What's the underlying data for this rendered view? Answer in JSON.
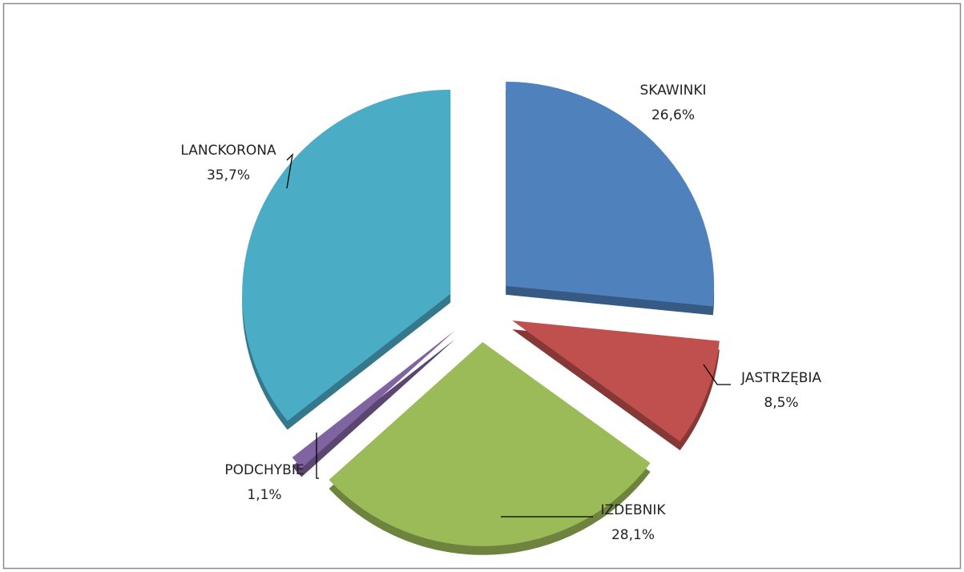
{
  "chart_data": {
    "type": "pie",
    "categories": [
      "SKAWINKI",
      "JASTRZĘBIA",
      "IZDEBNIK",
      "PODCHYBIE",
      "LANCKORONA"
    ],
    "values": [
      26.6,
      8.5,
      28.1,
      1.1,
      35.7
    ],
    "value_labels": [
      "26,6%",
      "8,5%",
      "28,1%",
      "1,1%",
      "35,7%"
    ],
    "colors": [
      "#4f81bd",
      "#c0504d",
      "#9bbb59",
      "#8064a2",
      "#4bacc6"
    ]
  }
}
